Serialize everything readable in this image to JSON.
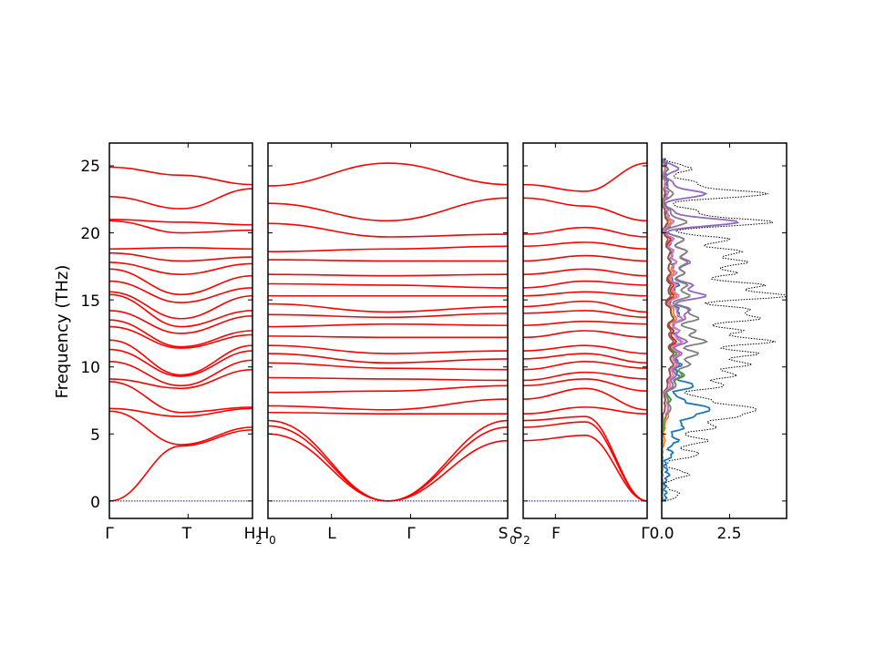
{
  "chart_data": [
    {
      "type": "line",
      "panel": "band-1",
      "ylabel": "Frequency (THz)",
      "ylim": [
        -1.3,
        26.7
      ],
      "yticks": [
        0,
        5,
        10,
        15,
        20,
        25
      ],
      "ytick_labels": [
        "0",
        "5",
        "10",
        "15",
        "20",
        "25"
      ],
      "kpoints": [
        {
          "label": "Γ",
          "pos": 0.0
        },
        {
          "label": "T",
          "pos": 0.55
        },
        {
          "label": "H",
          "pos": 1.0
        },
        {
          "label": "2",
          "pos": 1.0,
          "sub": true
        }
      ],
      "series_color": "#ff0000",
      "zero_line_color": "#0000cc",
      "bands": {
        "left": [
          0,
          6.7,
          6.9,
          8.9,
          9.1,
          10.4,
          11.3,
          12.0,
          13.0,
          13.5,
          14.2,
          15.4,
          15.6,
          16.4,
          17.3,
          17.8,
          18.5,
          18.8,
          20.9,
          21.0,
          22.7,
          24.9
        ],
        "mid": [
          4.1,
          4.2,
          6.3,
          6.6,
          8.4,
          8.6,
          9.3,
          9.4,
          11.4,
          11.5,
          12.5,
          13.0,
          13.6,
          14.8,
          15.4,
          16.9,
          17.9,
          18.9,
          20.0,
          20.8,
          21.8,
          24.3
        ],
        "right": [
          5.3,
          5.5,
          6.9,
          7.0,
          9.8,
          10.5,
          11.2,
          11.6,
          12.4,
          12.7,
          13.8,
          14.2,
          15.3,
          15.9,
          16.8,
          17.7,
          18.2,
          18.8,
          20.2,
          20.6,
          23.3,
          23.6
        ]
      }
    },
    {
      "type": "line",
      "panel": "band-2",
      "kpoints": [
        {
          "label": "H",
          "pos": 0.0
        },
        {
          "label": "0",
          "pos": 0.0,
          "sub": true
        },
        {
          "label": "L",
          "pos": 0.265
        },
        {
          "label": "Γ",
          "pos": 0.595
        },
        {
          "label": "S",
          "pos": 1.0
        },
        {
          "label": "0",
          "pos": 1.0,
          "sub": true
        }
      ],
      "bands": {
        "left": [
          5.0,
          5.6,
          6.0,
          6.6,
          7.1,
          8.1,
          9.2,
          10.3,
          11.0,
          11.6,
          12.3,
          13.0,
          13.9,
          14.7,
          15.3,
          16.2,
          16.9,
          18.0,
          18.6,
          20.7,
          22.2,
          23.5
        ],
        "mid": [
          0,
          0,
          0,
          6.5,
          6.8,
          8.2,
          9.1,
          9.9,
          10.3,
          11.0,
          12.2,
          13.2,
          13.7,
          14.1,
          15.3,
          16.1,
          16.8,
          17.9,
          18.8,
          19.7,
          20.9,
          25.2
        ],
        "right": [
          4.5,
          5.5,
          6.0,
          6.5,
          7.6,
          8.6,
          9.0,
          9.8,
          10.6,
          11.2,
          12.2,
          13.1,
          14.0,
          14.5,
          15.3,
          15.9,
          16.9,
          17.9,
          19.0,
          19.9,
          22.6,
          23.6
        ]
      }
    },
    {
      "type": "line",
      "panel": "band-3",
      "kpoints": [
        {
          "label": "S",
          "pos": 0.0
        },
        {
          "label": "2",
          "pos": 0.0,
          "sub": true
        },
        {
          "label": "F",
          "pos": 0.26
        },
        {
          "label": "Γ",
          "pos": 1.0
        }
      ],
      "bands": {
        "left": [
          4.5,
          5.5,
          6.0,
          6.5,
          7.6,
          8.6,
          9.0,
          9.8,
          10.6,
          11.2,
          12.2,
          13.1,
          14.0,
          14.5,
          15.3,
          15.9,
          16.9,
          17.9,
          19.0,
          19.9,
          22.6,
          23.6
        ],
        "mid": [
          4.9,
          5.9,
          6.3,
          7.0,
          8.4,
          9.1,
          9.6,
          10.4,
          11.0,
          11.6,
          12.7,
          13.4,
          14.2,
          14.9,
          15.6,
          16.4,
          17.3,
          18.3,
          19.3,
          20.4,
          22.0,
          23.1
        ],
        "right": [
          0,
          0,
          0,
          6.5,
          6.8,
          8.2,
          9.1,
          9.9,
          10.3,
          11.0,
          12.2,
          13.2,
          13.7,
          14.1,
          15.3,
          16.1,
          16.8,
          17.9,
          18.8,
          19.7,
          20.9,
          25.2
        ]
      }
    },
    {
      "type": "line",
      "panel": "dos",
      "xlim": [
        0,
        4.6
      ],
      "xticks": [
        0.0,
        2.5
      ],
      "xtick_labels": [
        "0.0",
        "2.5"
      ],
      "total_color": "#000000",
      "partial_colors": [
        "#1f77b4",
        "#ff7f0e",
        "#2ca02c",
        "#d62728",
        "#9467bd",
        "#8c564b",
        "#e377c2",
        "#7f7f7f"
      ],
      "peaks": [
        {
          "f": 0.5,
          "t": 0.55,
          "p": [
            0.05,
            0,
            0,
            0,
            0,
            0,
            0,
            0
          ]
        },
        {
          "f": 2.0,
          "t": 0.9,
          "p": [
            0.15,
            0,
            0,
            0,
            0,
            0,
            0,
            0
          ]
        },
        {
          "f": 3.5,
          "t": 1.3,
          "p": [
            0.3,
            0,
            0,
            0,
            0,
            0,
            0,
            0
          ]
        },
        {
          "f": 4.5,
          "t": 1.6,
          "p": [
            0.5,
            0.1,
            0,
            0,
            0,
            0,
            0,
            0
          ]
        },
        {
          "f": 5.5,
          "t": 1.9,
          "p": [
            0.7,
            0.1,
            0.05,
            0,
            0,
            0,
            0,
            0
          ]
        },
        {
          "f": 6.3,
          "t": 2.4,
          "p": [
            0.9,
            0.2,
            0.1,
            0,
            0.1,
            0,
            0.1,
            0.1
          ]
        },
        {
          "f": 6.9,
          "t": 3.1,
          "p": [
            1.6,
            0.2,
            0.2,
            0.1,
            0.2,
            0.1,
            0.2,
            0.3
          ]
        },
        {
          "f": 7.6,
          "t": 1.5,
          "p": [
            0.6,
            0.2,
            0.3,
            0.1,
            0.2,
            0.1,
            0.2,
            0.2
          ]
        },
        {
          "f": 8.6,
          "t": 2.2,
          "p": [
            1.1,
            0.4,
            0.5,
            0.3,
            0.4,
            0.2,
            0.3,
            0.5
          ]
        },
        {
          "f": 9.4,
          "t": 2.6,
          "p": [
            0.5,
            0.5,
            0.8,
            0.3,
            0.5,
            0.3,
            0.4,
            0.7
          ]
        },
        {
          "f": 10.2,
          "t": 3.1,
          "p": [
            0.6,
            0.5,
            0.6,
            0.4,
            0.6,
            0.4,
            0.5,
            1.0
          ]
        },
        {
          "f": 11.0,
          "t": 3.4,
          "p": [
            0.5,
            0.6,
            0.5,
            0.4,
            0.7,
            0.4,
            0.6,
            1.3
          ]
        },
        {
          "f": 11.9,
          "t": 4.0,
          "p": [
            0.6,
            0.5,
            0.5,
            0.5,
            0.9,
            0.4,
            0.7,
            1.6
          ]
        },
        {
          "f": 12.7,
          "t": 2.8,
          "p": [
            0.5,
            0.4,
            0.4,
            0.4,
            0.6,
            0.3,
            0.6,
            1.2
          ]
        },
        {
          "f": 13.6,
          "t": 3.4,
          "p": [
            0.6,
            0.5,
            0.4,
            0.4,
            0.8,
            0.4,
            0.7,
            1.3
          ]
        },
        {
          "f": 14.3,
          "t": 3.0,
          "p": [
            0.5,
            0.4,
            0.3,
            0.3,
            1.0,
            0.3,
            0.5,
            0.9
          ]
        },
        {
          "f": 15.3,
          "t": 4.6,
          "p": [
            0.4,
            0.5,
            0.3,
            0.4,
            1.6,
            0.3,
            0.6,
            1.0
          ]
        },
        {
          "f": 16.1,
          "t": 3.6,
          "p": [
            0.5,
            0.5,
            0.3,
            0.4,
            1.1,
            0.3,
            0.5,
            0.9
          ]
        },
        {
          "f": 17.0,
          "t": 2.6,
          "p": [
            0.4,
            0.4,
            0.3,
            0.3,
            0.8,
            0.3,
            0.5,
            0.8
          ]
        },
        {
          "f": 17.8,
          "t": 3.0,
          "p": [
            0.4,
            0.5,
            0.3,
            0.3,
            1.0,
            0.3,
            0.5,
            0.9
          ]
        },
        {
          "f": 18.6,
          "t": 2.8,
          "p": [
            0.3,
            0.4,
            0.3,
            0.3,
            0.9,
            0.3,
            0.4,
            0.9
          ]
        },
        {
          "f": 19.5,
          "t": 2.4,
          "p": [
            0.3,
            0.3,
            0.3,
            0.3,
            0.8,
            0.2,
            0.4,
            0.8
          ]
        },
        {
          "f": 20.8,
          "t": 4.0,
          "p": [
            0.3,
            0.3,
            0.2,
            0.2,
            2.8,
            0.2,
            0.4,
            0.9
          ]
        },
        {
          "f": 21.6,
          "t": 1.2,
          "p": [
            0.1,
            0.1,
            0.1,
            0.1,
            0.4,
            0.1,
            0.2,
            0.3
          ]
        },
        {
          "f": 22.9,
          "t": 3.8,
          "p": [
            0.1,
            0.1,
            0.1,
            0.1,
            1.6,
            0.1,
            0.2,
            0.4
          ]
        },
        {
          "f": 23.7,
          "t": 1.2,
          "p": [
            0.1,
            0.1,
            0.1,
            0.1,
            0.4,
            0.1,
            0.1,
            0.2
          ]
        },
        {
          "f": 24.8,
          "t": 1.0,
          "p": [
            0.1,
            0.1,
            0.1,
            0.1,
            0.6,
            0.1,
            0.1,
            0.2
          ]
        }
      ]
    }
  ]
}
